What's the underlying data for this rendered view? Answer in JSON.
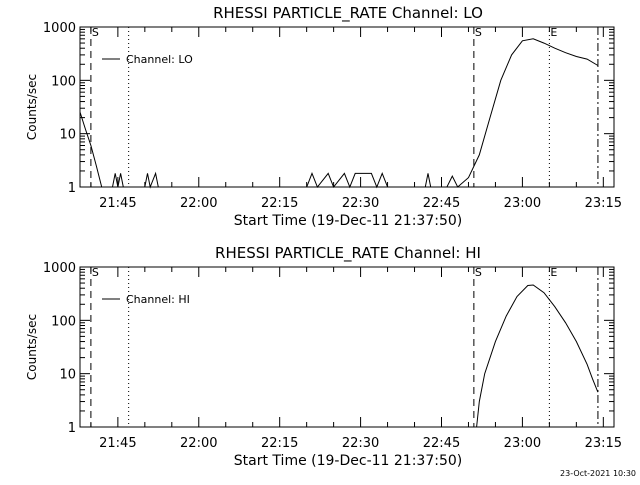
{
  "chart_data": [
    {
      "type": "line",
      "title": "RHESSI PARTICLE_RATE Channel: LO",
      "xlabel": "Start Time (19-Dec-11 21:37:50)",
      "ylabel": "Counts/sec",
      "yscale": "log",
      "ylim": [
        1,
        1000
      ],
      "xlim_minutes": [
        21.633,
        23.283
      ],
      "x_ticks": [
        "21:45",
        "22:00",
        "22:15",
        "22:30",
        "22:45",
        "23:00",
        "23:15"
      ],
      "y_ticks": [
        "1",
        "10",
        "100",
        "1000"
      ],
      "legend": {
        "label": "Channel: LO",
        "position": "top-left"
      },
      "markers": [
        {
          "label": "S",
          "time": "21:40",
          "style": "dashed"
        },
        {
          "label": "",
          "time": "21:47",
          "style": "dotted"
        },
        {
          "label": "S",
          "time": "22:51",
          "style": "dashed"
        },
        {
          "label": "E",
          "time": "23:05",
          "style": "dotted"
        },
        {
          "label": "",
          "time": "23:14",
          "style": "dashdot"
        }
      ],
      "series": [
        {
          "name": "Channel: LO",
          "points": [
            [
              "21:38",
              25
            ],
            [
              "21:39",
              12
            ],
            [
              "21:40",
              6
            ],
            [
              "21:41",
              2.5
            ],
            [
              "21:42",
              1
            ],
            [
              "21:44",
              1
            ],
            [
              "21:44.5",
              1.8
            ],
            [
              "21:45",
              1
            ],
            [
              "21:45.5",
              1.8
            ],
            [
              "21:46",
              1
            ],
            [
              "21:50",
              1
            ],
            [
              "21:50.5",
              1.8
            ],
            [
              "21:51",
              1
            ],
            [
              "21:52",
              1.8
            ],
            [
              "21:52.5",
              1
            ],
            [
              "22:20",
              1
            ],
            [
              "22:21",
              1.8
            ],
            [
              "22:22",
              1
            ],
            [
              "22:24",
              1.8
            ],
            [
              "22:25",
              1
            ],
            [
              "22:27",
              1.8
            ],
            [
              "22:28",
              1
            ],
            [
              "22:29",
              1.8
            ],
            [
              "22:32",
              1.8
            ],
            [
              "22:33",
              1
            ],
            [
              "22:34",
              1.8
            ],
            [
              "22:35",
              1
            ],
            [
              "22:42",
              1
            ],
            [
              "22:42.5",
              1.8
            ],
            [
              "22:43",
              1
            ],
            [
              "22:46",
              1
            ],
            [
              "22:47",
              1.6
            ],
            [
              "22:48",
              1
            ],
            [
              "22:50",
              1.5
            ],
            [
              "22:52",
              4
            ],
            [
              "22:54",
              20
            ],
            [
              "22:56",
              100
            ],
            [
              "22:58",
              300
            ],
            [
              "23:00",
              550
            ],
            [
              "23:02",
              600
            ],
            [
              "23:04",
              500
            ],
            [
              "23:06",
              400
            ],
            [
              "23:08",
              330
            ],
            [
              "23:10",
              280
            ],
            [
              "23:12",
              250
            ],
            [
              "23:14",
              190
            ]
          ]
        }
      ]
    },
    {
      "type": "line",
      "title": "RHESSI PARTICLE_RATE Channel: HI",
      "xlabel": "Start Time (19-Dec-11 21:37:50)",
      "ylabel": "Counts/sec",
      "yscale": "log",
      "ylim": [
        1,
        1000
      ],
      "xlim_minutes": [
        21.633,
        23.283
      ],
      "x_ticks": [
        "21:45",
        "22:00",
        "22:15",
        "22:30",
        "22:45",
        "23:00",
        "23:15"
      ],
      "y_ticks": [
        "1",
        "10",
        "100",
        "1000"
      ],
      "legend": {
        "label": "Channel: HI",
        "position": "top-left"
      },
      "markers": [
        {
          "label": "S",
          "time": "21:40",
          "style": "dashed"
        },
        {
          "label": "",
          "time": "21:47",
          "style": "dotted"
        },
        {
          "label": "S",
          "time": "22:51",
          "style": "dashed"
        },
        {
          "label": "E",
          "time": "23:05",
          "style": "dotted"
        },
        {
          "label": "",
          "time": "23:14",
          "style": "dashdot"
        }
      ],
      "series": [
        {
          "name": "Channel: HI",
          "points": [
            [
              "22:51.5",
              1
            ],
            [
              "22:52",
              3
            ],
            [
              "22:53",
              10
            ],
            [
              "22:55",
              40
            ],
            [
              "22:57",
              120
            ],
            [
              "22:59",
              280
            ],
            [
              "23:01",
              450
            ],
            [
              "23:02",
              460
            ],
            [
              "23:04",
              330
            ],
            [
              "23:06",
              180
            ],
            [
              "23:08",
              90
            ],
            [
              "23:10",
              40
            ],
            [
              "23:12",
              15
            ],
            [
              "23:13",
              8
            ],
            [
              "23:14",
              4.5
            ]
          ]
        }
      ]
    }
  ],
  "footer": {
    "timestamp": "23-Oct-2021 10:30"
  }
}
